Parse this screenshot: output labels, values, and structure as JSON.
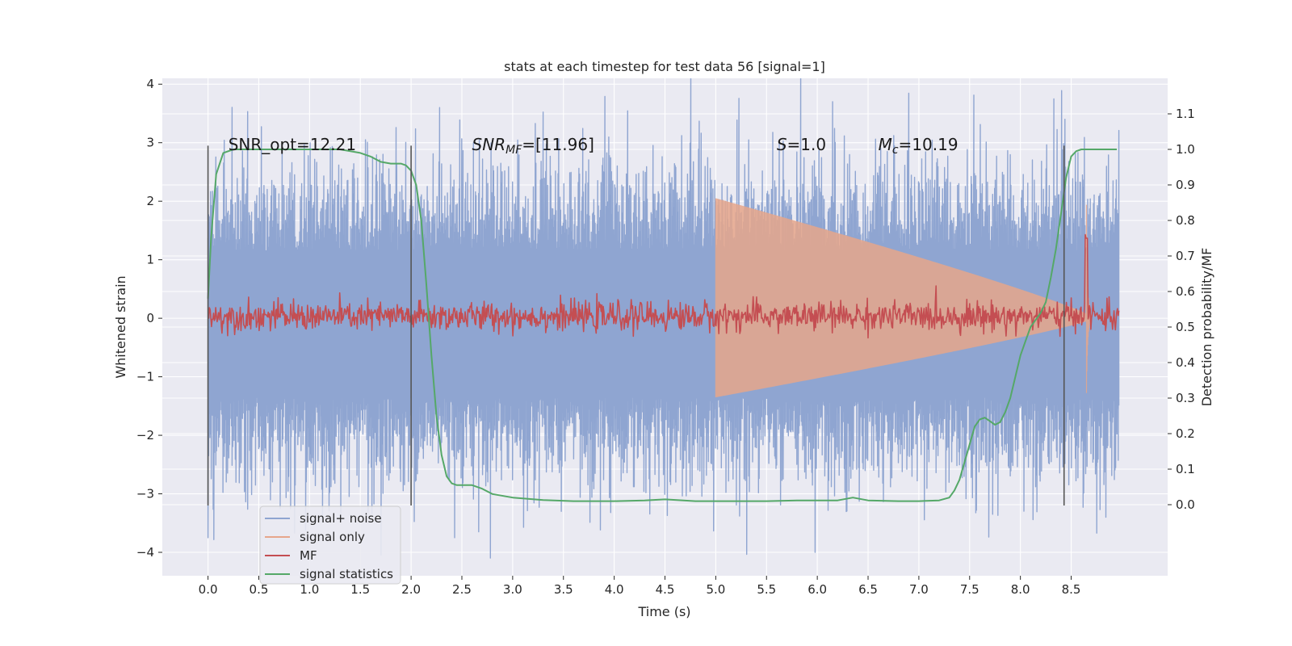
{
  "chart_data": {
    "type": "line",
    "title": "stats at each timestep for test data 56 [signal=1]",
    "xlabel": "Time (s)",
    "ylabel": "Whitened strain",
    "ylabel_right": "Detection probability/MF",
    "xlim": [
      -0.45,
      9.45
    ],
    "ylim": [
      -4.4,
      4.1
    ],
    "ylim_right": [
      -0.2,
      1.2
    ],
    "x_ticks": [
      0.0,
      0.5,
      1.0,
      1.5,
      2.0,
      2.5,
      3.0,
      3.5,
      4.0,
      4.5,
      5.0,
      5.5,
      6.0,
      6.5,
      7.0,
      7.5,
      8.0,
      8.5
    ],
    "x_tick_labels": [
      "0.0",
      "0.5",
      "1.0",
      "1.5",
      "2.0",
      "2.5",
      "3.0",
      "3.5",
      "4.0",
      "4.5",
      "5.0",
      "5.5",
      "6.0",
      "6.5",
      "7.0",
      "7.5",
      "8.0",
      "8.5"
    ],
    "y_ticks": [
      -4,
      -3,
      -2,
      -1,
      0,
      1,
      2,
      3,
      4
    ],
    "y_tick_labels": [
      "−4",
      "−3",
      "−2",
      "−1",
      "0",
      "1",
      "2",
      "3",
      "4"
    ],
    "y_right_ticks": [
      0.0,
      0.1,
      0.2,
      0.3,
      0.4,
      0.5,
      0.6,
      0.7,
      0.8,
      0.9,
      1.0,
      1.1
    ],
    "y_right_tick_labels": [
      "0.0",
      "0.1",
      "0.2",
      "0.3",
      "0.4",
      "0.5",
      "0.6",
      "0.7",
      "0.8",
      "0.9",
      "1.0",
      "1.1"
    ],
    "grid": true,
    "annotations": [
      {
        "id": "snr-opt",
        "text": "SNR_opt=12.21",
        "x": 0.2
      },
      {
        "id": "snr-mf",
        "text": "SNR",
        "sub": "MF",
        "tail": "=[11.96]",
        "italic": true,
        "x": 2.6
      },
      {
        "id": "s-value",
        "text": "S",
        "tail": "=1.0",
        "italic": true,
        "x": 5.6
      },
      {
        "id": "mc-value",
        "text": "M",
        "sub": "c",
        "tail": "=10.19",
        "italic": true,
        "x": 6.6
      }
    ],
    "vertical_markers": [
      0.0,
      2.0,
      8.43
    ],
    "vertical_marker_range": [
      -3.2,
      2.95
    ],
    "legend": {
      "placement": "lower-left",
      "entries": [
        {
          "label": "signal+ noise",
          "color": "#8fa5d1"
        },
        {
          "label": "signal only",
          "color": "#e6a68b"
        },
        {
          "label": "MF",
          "color": "#c44e52"
        },
        {
          "label": "signal statistics",
          "color": "#55a868"
        }
      ]
    },
    "series": [
      {
        "name": "signal+ noise",
        "color": "#8fa5d1",
        "x_range": [
          0.0,
          8.97
        ],
        "band_top": 1.15,
        "band_bottom": -1.35,
        "typical_max": 2.5,
        "typical_min": -2.6,
        "peaks": [
          {
            "x": 0.0,
            "y": -3.75
          },
          {
            "x": 2.28,
            "y": 3.6
          },
          {
            "x": 2.43,
            "y": -3.75
          },
          {
            "x": 3.48,
            "y": -3.3
          },
          {
            "x": 6.15,
            "y": 3.7
          },
          {
            "x": 5.98,
            "y": -4.0
          },
          {
            "x": 8.33,
            "y": 3.75
          },
          {
            "x": 8.44,
            "y": 3.4
          },
          {
            "x": 8.84,
            "y": -3.4
          }
        ]
      },
      {
        "name": "signal only",
        "color": "#e6a68b",
        "chirp_start": 5.0,
        "merger_time": 8.65,
        "ringdown_end": 8.7,
        "peak_amplitude_up": 2.05,
        "peak_amplitude_down": -1.35,
        "start_amplitude": 0.05
      },
      {
        "name": "MF",
        "color": "#c44e52",
        "axis": "right",
        "x_range": [
          0.0,
          8.97
        ],
        "baseline": 0.53,
        "noise_amplitude": 0.02,
        "peak": {
          "x": 8.65,
          "y": 0.75
        }
      },
      {
        "name": "signal statistics",
        "color": "#55a868",
        "axis": "right",
        "x": [
          0.0,
          0.03,
          0.08,
          0.15,
          0.25,
          0.35,
          0.5,
          0.8,
          1.0,
          1.3,
          1.5,
          1.6,
          1.7,
          1.8,
          1.9,
          1.95,
          2.0,
          2.05,
          2.1,
          2.15,
          2.2,
          2.25,
          2.3,
          2.35,
          2.4,
          2.45,
          2.5,
          2.6,
          2.7,
          2.8,
          3.0,
          3.3,
          3.6,
          4.0,
          4.3,
          4.5,
          4.8,
          5.1,
          5.5,
          5.8,
          6.0,
          6.2,
          6.35,
          6.5,
          6.8,
          7.0,
          7.2,
          7.3,
          7.35,
          7.4,
          7.45,
          7.5,
          7.55,
          7.6,
          7.65,
          7.7,
          7.75,
          7.8,
          7.85,
          7.9,
          7.95,
          8.0,
          8.05,
          8.1,
          8.15,
          8.2,
          8.25,
          8.3,
          8.35,
          8.4,
          8.45,
          8.5,
          8.55,
          8.6,
          8.7,
          8.8,
          8.9,
          8.95
        ],
        "values": [
          0.58,
          0.75,
          0.93,
          0.99,
          1.0,
          1.0,
          1.0,
          1.0,
          1.0,
          1.0,
          0.99,
          0.98,
          0.965,
          0.96,
          0.96,
          0.955,
          0.94,
          0.9,
          0.8,
          0.62,
          0.42,
          0.25,
          0.14,
          0.08,
          0.06,
          0.055,
          0.055,
          0.055,
          0.045,
          0.03,
          0.02,
          0.013,
          0.01,
          0.01,
          0.012,
          0.015,
          0.01,
          0.01,
          0.01,
          0.012,
          0.012,
          0.012,
          0.02,
          0.012,
          0.01,
          0.01,
          0.012,
          0.02,
          0.04,
          0.07,
          0.12,
          0.17,
          0.22,
          0.24,
          0.245,
          0.235,
          0.225,
          0.232,
          0.26,
          0.3,
          0.36,
          0.42,
          0.46,
          0.5,
          0.52,
          0.54,
          0.57,
          0.64,
          0.72,
          0.82,
          0.92,
          0.98,
          0.995,
          1.0,
          1.0,
          1.0,
          1.0,
          1.0
        ]
      }
    ]
  }
}
